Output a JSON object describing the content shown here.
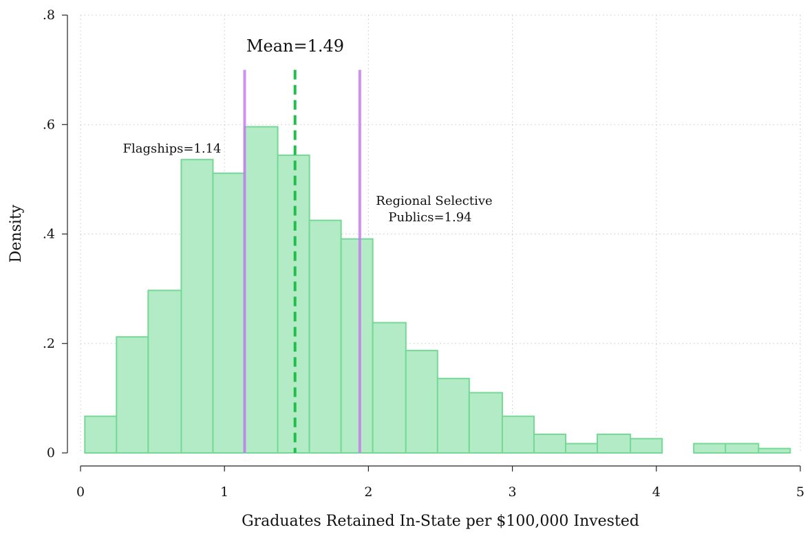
{
  "chart_data": {
    "type": "bar",
    "subtype": "histogram",
    "title": "",
    "xlabel": "Graduates Retained In-State per $100,000 Invested",
    "ylabel": "Density",
    "xlim": [
      0,
      5
    ],
    "ylim": [
      0,
      0.8
    ],
    "x_ticks": [
      {
        "value": 0,
        "label": "0"
      },
      {
        "value": 1,
        "label": "1"
      },
      {
        "value": 2,
        "label": "2"
      },
      {
        "value": 3,
        "label": "3"
      },
      {
        "value": 4,
        "label": "4"
      },
      {
        "value": 5,
        "label": "5"
      }
    ],
    "y_ticks": [
      {
        "value": 0,
        "label": "0"
      },
      {
        "value": 0.2,
        "label": ".2"
      },
      {
        "value": 0.4,
        "label": ".4"
      },
      {
        "value": 0.6,
        "label": ".6"
      },
      {
        "value": 0.8,
        "label": ".8"
      }
    ],
    "grid": "dotted",
    "bar_color": "#b3ebc6",
    "bar_edge_color": "#73d995",
    "bins": [
      {
        "x0": 0.03,
        "x1": 0.25,
        "density": 0.067
      },
      {
        "x0": 0.25,
        "x1": 0.47,
        "density": 0.212
      },
      {
        "x0": 0.47,
        "x1": 0.7,
        "density": 0.297
      },
      {
        "x0": 0.7,
        "x1": 0.92,
        "density": 0.536
      },
      {
        "x0": 0.92,
        "x1": 1.14,
        "density": 0.511
      },
      {
        "x0": 1.14,
        "x1": 1.37,
        "density": 0.596
      },
      {
        "x0": 1.37,
        "x1": 1.59,
        "density": 0.544
      },
      {
        "x0": 1.59,
        "x1": 1.81,
        "density": 0.425
      },
      {
        "x0": 1.81,
        "x1": 2.03,
        "density": 0.391
      },
      {
        "x0": 2.03,
        "x1": 2.26,
        "density": 0.238
      },
      {
        "x0": 2.26,
        "x1": 2.48,
        "density": 0.187
      },
      {
        "x0": 2.48,
        "x1": 2.7,
        "density": 0.136
      },
      {
        "x0": 2.7,
        "x1": 2.93,
        "density": 0.11
      },
      {
        "x0": 2.93,
        "x1": 3.15,
        "density": 0.067
      },
      {
        "x0": 3.15,
        "x1": 3.37,
        "density": 0.034
      },
      {
        "x0": 3.37,
        "x1": 3.59,
        "density": 0.017
      },
      {
        "x0": 3.59,
        "x1": 3.82,
        "density": 0.034
      },
      {
        "x0": 3.82,
        "x1": 4.04,
        "density": 0.026
      },
      {
        "x0": 4.26,
        "x1": 4.48,
        "density": 0.017
      },
      {
        "x0": 4.48,
        "x1": 4.71,
        "density": 0.017
      },
      {
        "x0": 4.71,
        "x1": 4.93,
        "density": 0.008
      }
    ],
    "reference_lines": [
      {
        "name": "mean",
        "x": 1.49,
        "style": "dashed",
        "color": "#1fbf4a",
        "label": "Mean=1.49"
      },
      {
        "name": "flagships",
        "x": 1.14,
        "style": "solid",
        "color": "#c77df0",
        "label": "Flagships=1.14"
      },
      {
        "name": "regional-selective-publics",
        "x": 1.94,
        "style": "solid",
        "color": "#c77df0",
        "label_lines": [
          "Regional Selective",
          "Publics=1.94"
        ]
      }
    ],
    "reference_line_top": 0.7
  }
}
